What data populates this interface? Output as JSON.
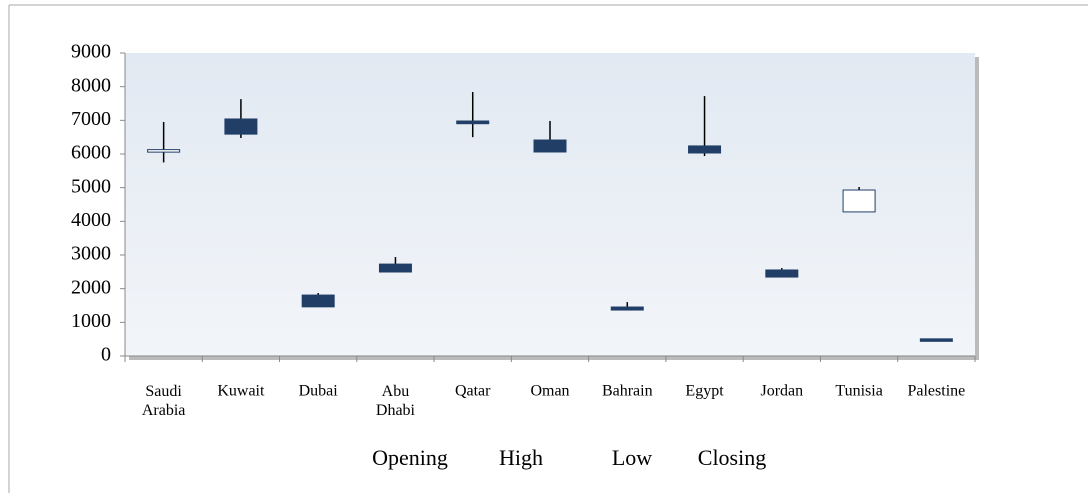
{
  "chart_data": {
    "type": "candlestick",
    "categories": [
      "Saudi Arabia",
      "Kuwait",
      "Dubai",
      "Abu Dhabi",
      "Qatar",
      "Oman",
      "Bahrain",
      "Egypt",
      "Jordan",
      "Tunisia",
      "Palestine"
    ],
    "series": [
      {
        "name": "Opening",
        "values": [
          6090,
          7040,
          1810,
          2730,
          6980,
          6415,
          1455,
          6240,
          2555,
          4280,
          510
        ]
      },
      {
        "name": "High",
        "values": [
          6950,
          7630,
          1870,
          2940,
          7840,
          6980,
          1600,
          7720,
          2610,
          5020,
          510
        ]
      },
      {
        "name": "Low",
        "values": [
          5750,
          6475,
          1455,
          2495,
          6500,
          6060,
          1365,
          5940,
          2345,
          4280,
          500
        ]
      },
      {
        "name": "Closing",
        "values": [
          6130,
          6590,
          1460,
          2495,
          6900,
          6060,
          1365,
          6030,
          2345,
          4930,
          500
        ]
      }
    ],
    "colors": {
      "up": "#ffffff",
      "down": "#213f66"
    },
    "ylim": [
      0,
      9000
    ],
    "yticks": [
      0,
      1000,
      2000,
      3000,
      4000,
      5000,
      6000,
      7000,
      8000,
      9000
    ]
  }
}
